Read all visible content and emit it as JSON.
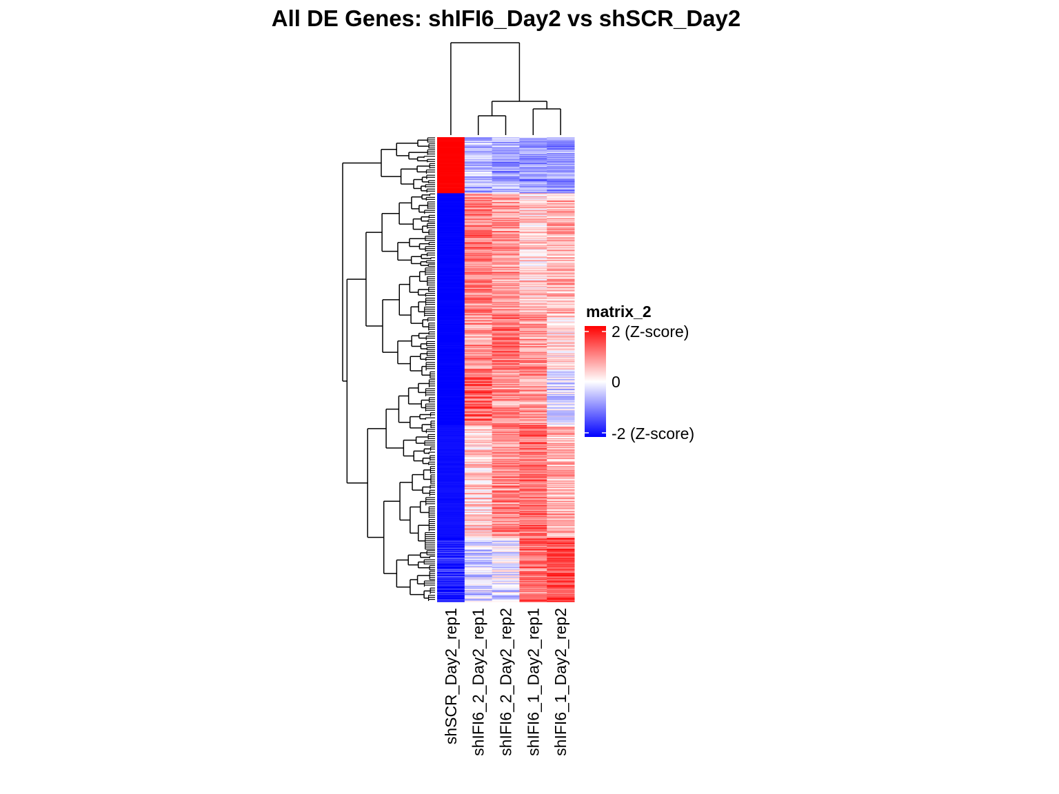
{
  "chart_data": {
    "type": "heatmap",
    "title": "All DE Genes: shIFI6_Day2  vs  shSCR_Day2",
    "columns": [
      "shSCR_Day2_rep1",
      "shIFI6_2_Day2_rep1",
      "shIFI6_2_Day2_rep2",
      "shIFI6_1_Day2_rep1",
      "shIFI6_1_Day2_rep2"
    ],
    "row_blocks": [
      {
        "rows": 70,
        "mean_z": [
          2.0,
          -0.6,
          -0.7,
          -0.8,
          -0.8
        ]
      },
      {
        "rows": 150,
        "mean_z": [
          -2.0,
          1.0,
          0.8,
          0.4,
          0.6
        ]
      },
      {
        "rows": 70,
        "mean_z": [
          -2.0,
          0.9,
          1.0,
          0.9,
          0.3
        ]
      },
      {
        "rows": 70,
        "mean_z": [
          -2.0,
          1.2,
          0.9,
          0.8,
          -0.3
        ]
      },
      {
        "rows": 140,
        "mean_z": [
          -1.9,
          0.4,
          0.9,
          1.1,
          0.6
        ]
      },
      {
        "rows": 80,
        "mean_z": [
          -1.8,
          -0.4,
          -0.2,
          1.1,
          1.4
        ]
      }
    ],
    "column_clustering": "((shSCR_Day2_rep1),((shIFI6_2_Day2_rep1,shIFI6_2_Day2_rep2),(shIFI6_1_Day2_rep1,shIFI6_1_Day2_rep2)))",
    "legend": {
      "title": "matrix_2",
      "breaks": [
        "2 (Z-score)",
        "0",
        "-2 (Z-score)"
      ],
      "values": [
        2,
        0,
        -2
      ],
      "colors": {
        "high": "#FF0000",
        "mid": "#FFFFFF",
        "low": "#0000FF"
      }
    }
  }
}
